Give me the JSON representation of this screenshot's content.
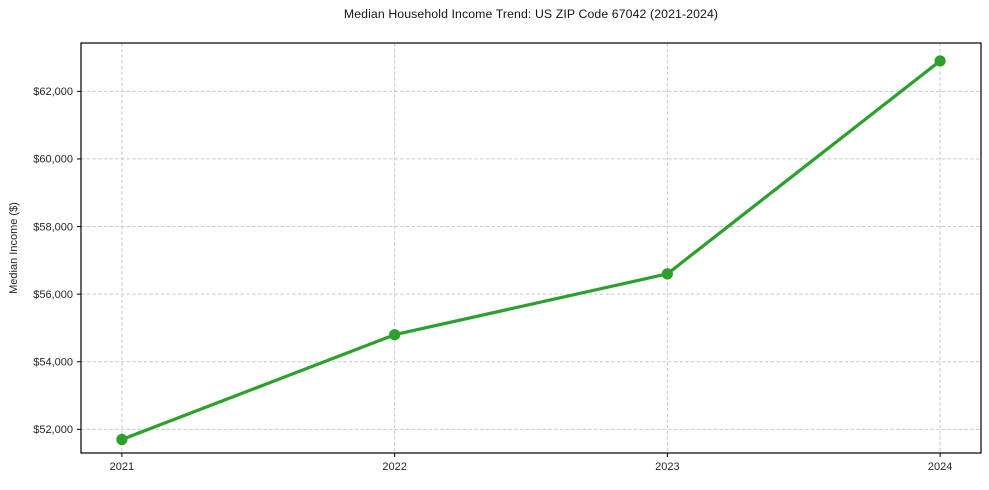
{
  "figure": {
    "title": "Median Household Income Trend: US ZIP Code 67042 (2021-2024)",
    "ylabel": "Median Income ($)"
  },
  "chart_data": {
    "type": "line",
    "title": "Median Household Income Trend: US ZIP Code 67042 (2021-2024)",
    "xlabel": "",
    "ylabel": "Median Income ($)",
    "categories": [
      "2021",
      "2022",
      "2023",
      "2024"
    ],
    "values": [
      51700,
      54800,
      56600,
      62900
    ],
    "y_ticks": [
      52000,
      54000,
      56000,
      58000,
      60000,
      62000
    ],
    "y_tick_labels": [
      "$52,000",
      "$54,000",
      "$56,000",
      "$58,000",
      "$60,000",
      "$62,000"
    ],
    "ylim": [
      51300,
      63430
    ],
    "x_pad": 0.15,
    "grid": true,
    "grid_style": "dashed",
    "legend": "none",
    "line_color": "#2ca02c",
    "marker": "circle",
    "background": "#ffffff",
    "axis_color": "#000000",
    "grid_color": "#c9c9c9",
    "tick_label_color": "#262626"
  }
}
